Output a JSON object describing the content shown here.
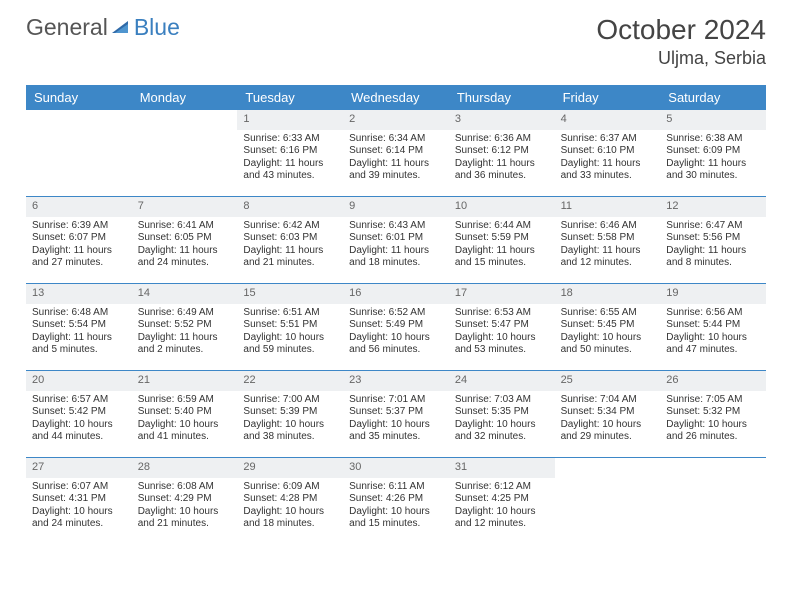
{
  "brand": {
    "word1": "General",
    "word2": "Blue",
    "logo_color": "#2f6aa8"
  },
  "title": "October 2024",
  "location": "Uljma, Serbia",
  "colors": {
    "header_bg": "#3d87c7",
    "header_text": "#ffffff",
    "daynum_bg": "#eef0f2",
    "daynum_text": "#666666",
    "border": "#3d87c7",
    "body_text": "#333333"
  },
  "day_names": [
    "Sunday",
    "Monday",
    "Tuesday",
    "Wednesday",
    "Thursday",
    "Friday",
    "Saturday"
  ],
  "weeks": [
    [
      {
        "n": "",
        "sr": "",
        "ss": "",
        "dl": ""
      },
      {
        "n": "",
        "sr": "",
        "ss": "",
        "dl": ""
      },
      {
        "n": "1",
        "sr": "Sunrise: 6:33 AM",
        "ss": "Sunset: 6:16 PM",
        "dl": "Daylight: 11 hours and 43 minutes."
      },
      {
        "n": "2",
        "sr": "Sunrise: 6:34 AM",
        "ss": "Sunset: 6:14 PM",
        "dl": "Daylight: 11 hours and 39 minutes."
      },
      {
        "n": "3",
        "sr": "Sunrise: 6:36 AM",
        "ss": "Sunset: 6:12 PM",
        "dl": "Daylight: 11 hours and 36 minutes."
      },
      {
        "n": "4",
        "sr": "Sunrise: 6:37 AM",
        "ss": "Sunset: 6:10 PM",
        "dl": "Daylight: 11 hours and 33 minutes."
      },
      {
        "n": "5",
        "sr": "Sunrise: 6:38 AM",
        "ss": "Sunset: 6:09 PM",
        "dl": "Daylight: 11 hours and 30 minutes."
      }
    ],
    [
      {
        "n": "6",
        "sr": "Sunrise: 6:39 AM",
        "ss": "Sunset: 6:07 PM",
        "dl": "Daylight: 11 hours and 27 minutes."
      },
      {
        "n": "7",
        "sr": "Sunrise: 6:41 AM",
        "ss": "Sunset: 6:05 PM",
        "dl": "Daylight: 11 hours and 24 minutes."
      },
      {
        "n": "8",
        "sr": "Sunrise: 6:42 AM",
        "ss": "Sunset: 6:03 PM",
        "dl": "Daylight: 11 hours and 21 minutes."
      },
      {
        "n": "9",
        "sr": "Sunrise: 6:43 AM",
        "ss": "Sunset: 6:01 PM",
        "dl": "Daylight: 11 hours and 18 minutes."
      },
      {
        "n": "10",
        "sr": "Sunrise: 6:44 AM",
        "ss": "Sunset: 5:59 PM",
        "dl": "Daylight: 11 hours and 15 minutes."
      },
      {
        "n": "11",
        "sr": "Sunrise: 6:46 AM",
        "ss": "Sunset: 5:58 PM",
        "dl": "Daylight: 11 hours and 12 minutes."
      },
      {
        "n": "12",
        "sr": "Sunrise: 6:47 AM",
        "ss": "Sunset: 5:56 PM",
        "dl": "Daylight: 11 hours and 8 minutes."
      }
    ],
    [
      {
        "n": "13",
        "sr": "Sunrise: 6:48 AM",
        "ss": "Sunset: 5:54 PM",
        "dl": "Daylight: 11 hours and 5 minutes."
      },
      {
        "n": "14",
        "sr": "Sunrise: 6:49 AM",
        "ss": "Sunset: 5:52 PM",
        "dl": "Daylight: 11 hours and 2 minutes."
      },
      {
        "n": "15",
        "sr": "Sunrise: 6:51 AM",
        "ss": "Sunset: 5:51 PM",
        "dl": "Daylight: 10 hours and 59 minutes."
      },
      {
        "n": "16",
        "sr": "Sunrise: 6:52 AM",
        "ss": "Sunset: 5:49 PM",
        "dl": "Daylight: 10 hours and 56 minutes."
      },
      {
        "n": "17",
        "sr": "Sunrise: 6:53 AM",
        "ss": "Sunset: 5:47 PM",
        "dl": "Daylight: 10 hours and 53 minutes."
      },
      {
        "n": "18",
        "sr": "Sunrise: 6:55 AM",
        "ss": "Sunset: 5:45 PM",
        "dl": "Daylight: 10 hours and 50 minutes."
      },
      {
        "n": "19",
        "sr": "Sunrise: 6:56 AM",
        "ss": "Sunset: 5:44 PM",
        "dl": "Daylight: 10 hours and 47 minutes."
      }
    ],
    [
      {
        "n": "20",
        "sr": "Sunrise: 6:57 AM",
        "ss": "Sunset: 5:42 PM",
        "dl": "Daylight: 10 hours and 44 minutes."
      },
      {
        "n": "21",
        "sr": "Sunrise: 6:59 AM",
        "ss": "Sunset: 5:40 PM",
        "dl": "Daylight: 10 hours and 41 minutes."
      },
      {
        "n": "22",
        "sr": "Sunrise: 7:00 AM",
        "ss": "Sunset: 5:39 PM",
        "dl": "Daylight: 10 hours and 38 minutes."
      },
      {
        "n": "23",
        "sr": "Sunrise: 7:01 AM",
        "ss": "Sunset: 5:37 PM",
        "dl": "Daylight: 10 hours and 35 minutes."
      },
      {
        "n": "24",
        "sr": "Sunrise: 7:03 AM",
        "ss": "Sunset: 5:35 PM",
        "dl": "Daylight: 10 hours and 32 minutes."
      },
      {
        "n": "25",
        "sr": "Sunrise: 7:04 AM",
        "ss": "Sunset: 5:34 PM",
        "dl": "Daylight: 10 hours and 29 minutes."
      },
      {
        "n": "26",
        "sr": "Sunrise: 7:05 AM",
        "ss": "Sunset: 5:32 PM",
        "dl": "Daylight: 10 hours and 26 minutes."
      }
    ],
    [
      {
        "n": "27",
        "sr": "Sunrise: 6:07 AM",
        "ss": "Sunset: 4:31 PM",
        "dl": "Daylight: 10 hours and 24 minutes."
      },
      {
        "n": "28",
        "sr": "Sunrise: 6:08 AM",
        "ss": "Sunset: 4:29 PM",
        "dl": "Daylight: 10 hours and 21 minutes."
      },
      {
        "n": "29",
        "sr": "Sunrise: 6:09 AM",
        "ss": "Sunset: 4:28 PM",
        "dl": "Daylight: 10 hours and 18 minutes."
      },
      {
        "n": "30",
        "sr": "Sunrise: 6:11 AM",
        "ss": "Sunset: 4:26 PM",
        "dl": "Daylight: 10 hours and 15 minutes."
      },
      {
        "n": "31",
        "sr": "Sunrise: 6:12 AM",
        "ss": "Sunset: 4:25 PM",
        "dl": "Daylight: 10 hours and 12 minutes."
      },
      {
        "n": "",
        "sr": "",
        "ss": "",
        "dl": ""
      },
      {
        "n": "",
        "sr": "",
        "ss": "",
        "dl": ""
      }
    ]
  ]
}
